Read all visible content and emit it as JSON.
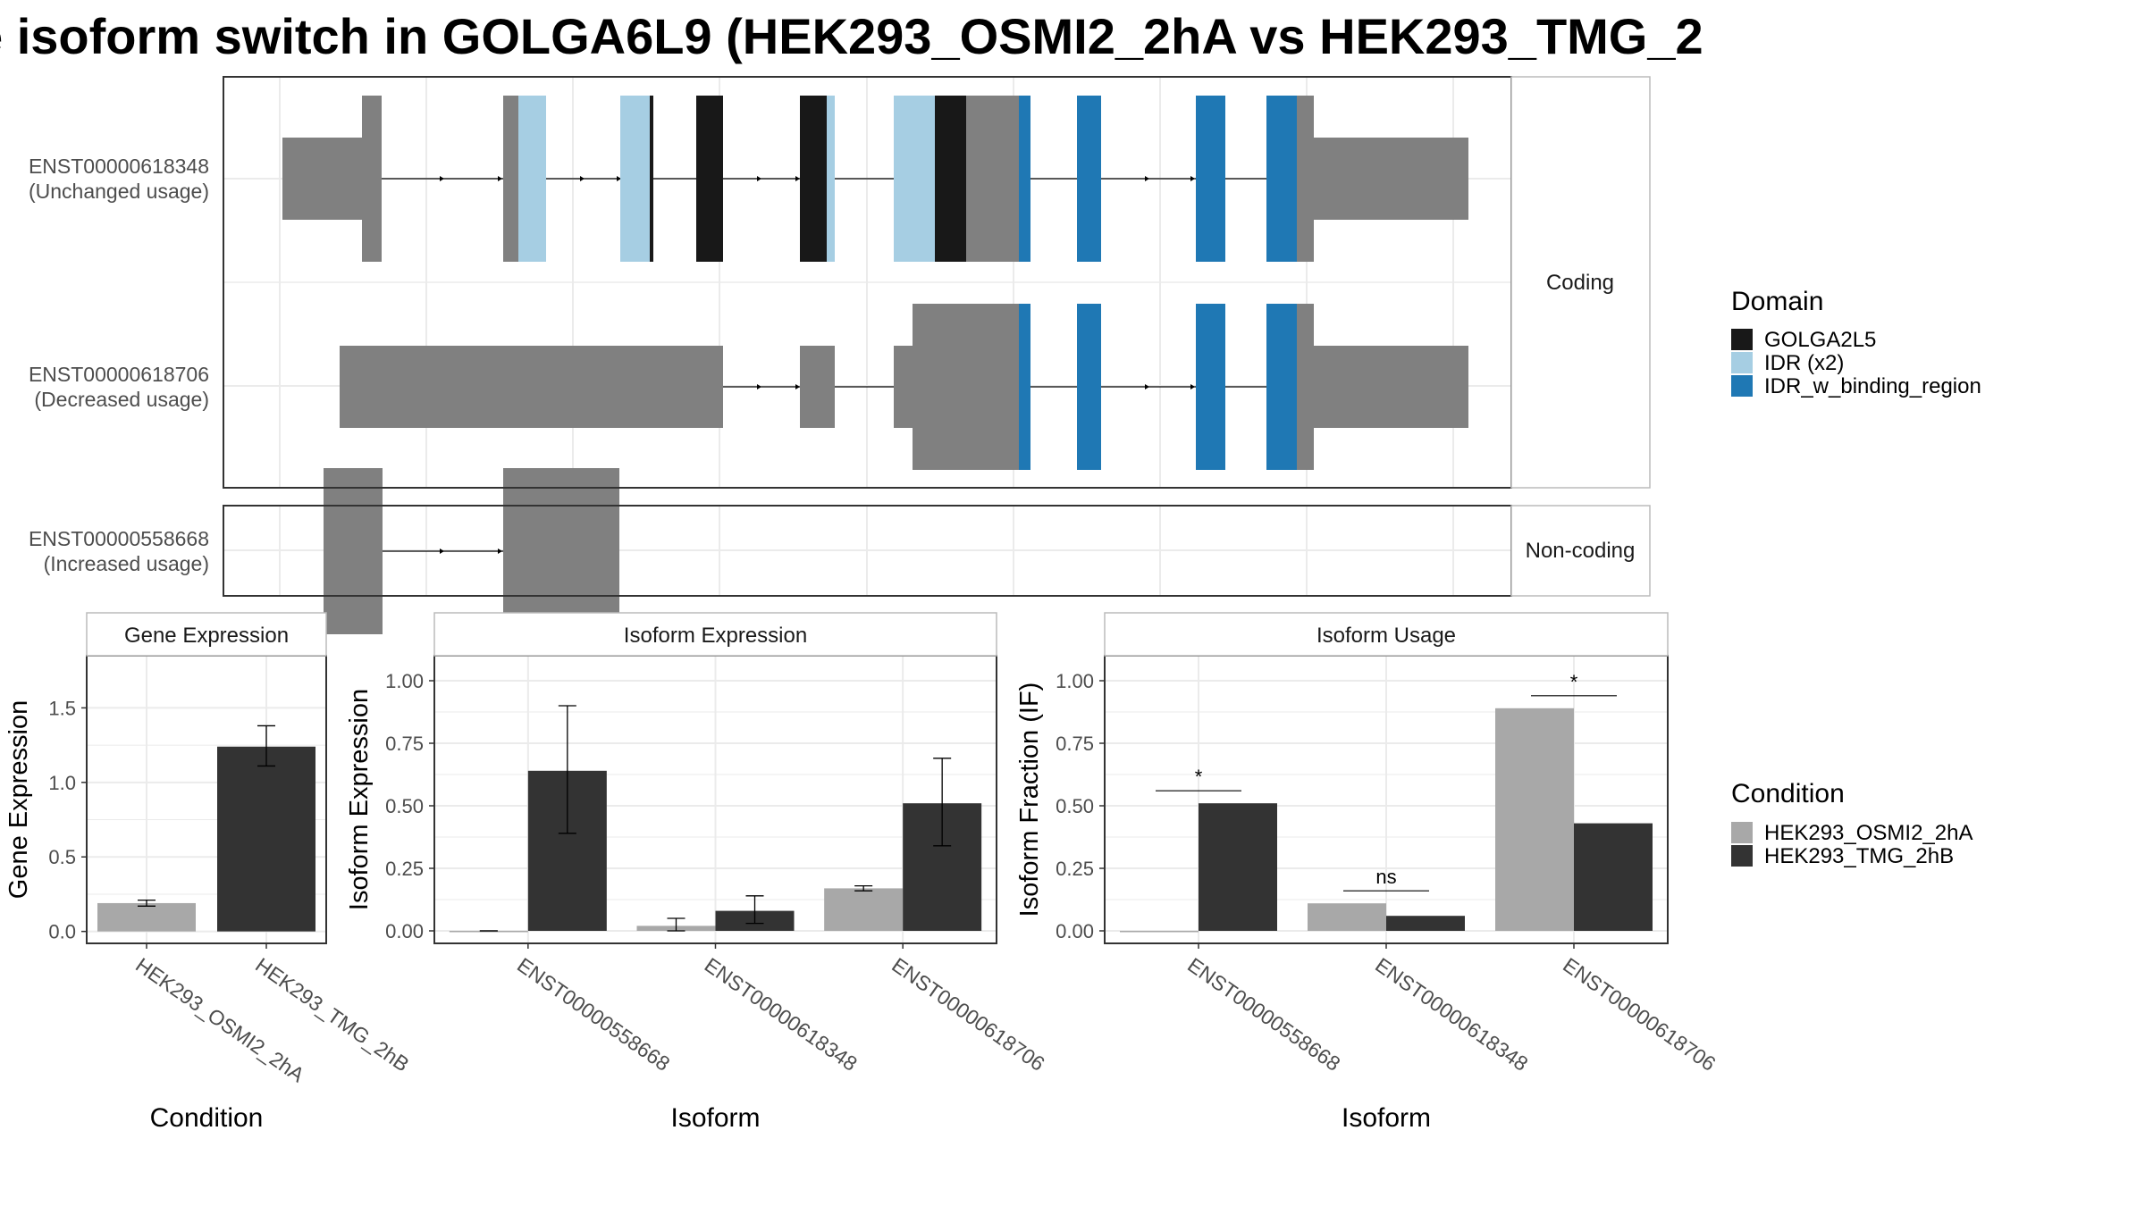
{
  "title": "e isoform switch in GOLGA6L9 (HEK293_OSMI2_2hA vs HEK293_TMG_2",
  "colors": {
    "utr": "#808080",
    "GOLGA2L5": "#181818",
    "IDR (x2)": "#a6cee3",
    "IDR_w_binding_region": "#1f78b4",
    "cond1": "#a8a8a8",
    "cond2": "#333333"
  },
  "structure": {
    "groups": [
      {
        "label": "Coding",
        "isoforms": [
          {
            "id": "ENST00000618348",
            "usage": "(Unchanged usage)"
          },
          {
            "id": "ENST00000618706",
            "usage": "(Decreased usage)"
          }
        ]
      },
      {
        "label": "Non-coding",
        "isoforms": [
          {
            "id": "ENST00000558668",
            "usage": "(Increased usage)"
          }
        ]
      }
    ],
    "legend_title": "Domain",
    "legend": [
      "GOLGA2L5",
      "IDR (x2)",
      "IDR_w_binding_region"
    ]
  },
  "chart_data": [
    {
      "type": "bar",
      "title": "Gene Expression",
      "xlabel": "Condition",
      "ylabel": "Gene Expression",
      "categories": [
        "HEK293_OSMI2_2hA",
        "HEK293_TMG_2hB"
      ],
      "values": [
        0.19,
        1.24
      ],
      "errors": [
        [
          0.17,
          0.21
        ],
        [
          1.11,
          1.38
        ]
      ],
      "ylim": [
        -0.08,
        1.85
      ],
      "yticks": [
        "0.0",
        "0.5",
        "1.0",
        "1.5"
      ],
      "yticks_values": [
        0,
        0.5,
        1.0,
        1.5
      ],
      "grid": true
    },
    {
      "type": "bar",
      "title": "Isoform Expression",
      "xlabel": "Isoform",
      "ylabel": "Isoform Expression",
      "categories": [
        "ENST00000558668",
        "ENST00000618348",
        "ENST00000618706"
      ],
      "series": [
        {
          "name": "HEK293_OSMI2_2hA",
          "values": [
            0.0,
            0.02,
            0.17
          ],
          "errors": [
            [
              0.0,
              0.0
            ],
            [
              0.0,
              0.05
            ],
            [
              0.16,
              0.18
            ]
          ]
        },
        {
          "name": "HEK293_TMG_2hB",
          "values": [
            0.64,
            0.08,
            0.51
          ],
          "errors": [
            [
              0.39,
              0.9
            ],
            [
              0.03,
              0.14
            ],
            [
              0.34,
              0.69
            ]
          ]
        }
      ],
      "ylim": [
        -0.05,
        1.1
      ],
      "yticks": [
        "0.00",
        "0.25",
        "0.50",
        "0.75",
        "1.00"
      ],
      "yticks_values": [
        0,
        0.25,
        0.5,
        0.75,
        1.0
      ],
      "grid": true
    },
    {
      "type": "bar",
      "title": "Isoform Usage",
      "xlabel": "Isoform",
      "ylabel": "Isoform Fraction (IF)",
      "categories": [
        "ENST00000558668",
        "ENST00000618348",
        "ENST00000618706"
      ],
      "series": [
        {
          "name": "HEK293_OSMI2_2hA",
          "values": [
            0.0,
            0.11,
            0.89
          ]
        },
        {
          "name": "HEK293_TMG_2hB",
          "values": [
            0.51,
            0.06,
            0.43
          ]
        }
      ],
      "significance": [
        "*",
        "ns",
        "*"
      ],
      "significance_y": [
        0.56,
        0.16,
        0.94
      ],
      "ylim": [
        -0.05,
        1.1
      ],
      "yticks": [
        "0.00",
        "0.25",
        "0.50",
        "0.75",
        "1.00"
      ],
      "yticks_values": [
        0,
        0.25,
        0.5,
        0.75,
        1.0
      ],
      "grid": true
    }
  ],
  "condition_legend": {
    "title": "Condition",
    "items": [
      "HEK293_OSMI2_2hA",
      "HEK293_TMG_2hB"
    ]
  }
}
